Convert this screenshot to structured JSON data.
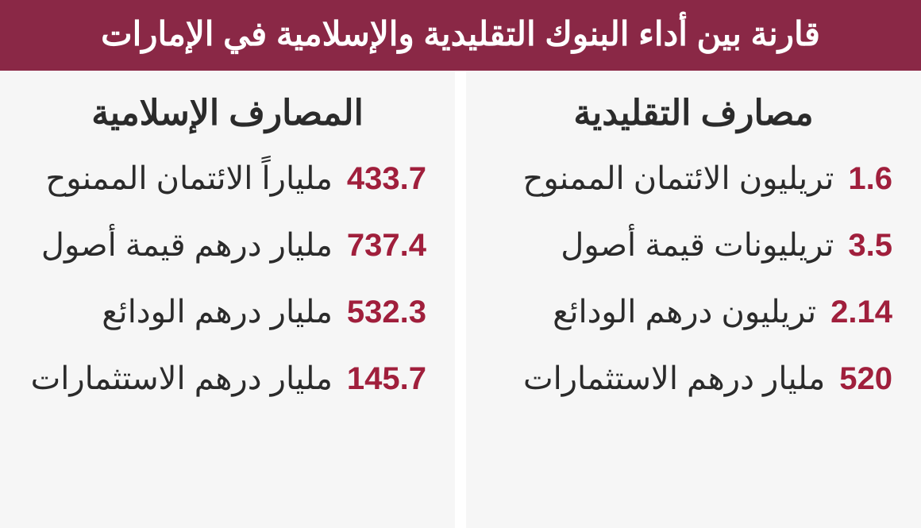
{
  "colors": {
    "header_bg": "#8a2846",
    "header_text": "#ffffff",
    "body_bg": "#f6f6f6",
    "title_text": "#2b2b2b",
    "value_text": "#a01f3c",
    "label_text": "#2b2b2b",
    "divider": "#ffffff"
  },
  "header_title": "قارنة بين أداء البنوك التقليدية والإسلامية في الإمارات",
  "right_column": {
    "title": "مصارف التقليدية",
    "rows": [
      {
        "value": "1.6",
        "label": "تريليون الائتمان الممنوح"
      },
      {
        "value": "3.5",
        "label": "تريليونات  قيمة أصول"
      },
      {
        "value": "2.14",
        "label": "تريليون درهم الودائع"
      },
      {
        "value": "520",
        "label": "مليار درهم الاستثمارات"
      }
    ]
  },
  "left_column": {
    "title": "المصارف الإسلامية",
    "rows": [
      {
        "value": "433.7",
        "label": "ملياراً الائتمان الممنوح"
      },
      {
        "value": "737.4",
        "label": "مليار درهم قيمة أصول"
      },
      {
        "value": "532.3",
        "label": "مليار درهم الودائع"
      },
      {
        "value": "145.7",
        "label": "مليار درهم الاستثمارات"
      }
    ]
  }
}
